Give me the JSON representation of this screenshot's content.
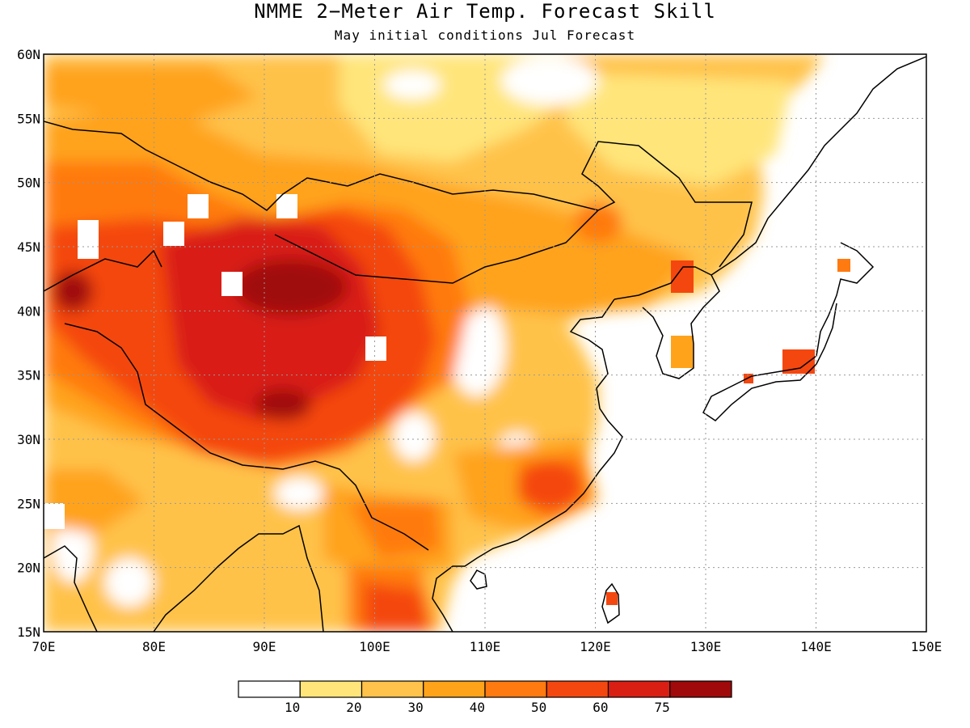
{
  "header": {
    "title": "NMME 2−Meter Air Temp. Forecast Skill",
    "subtitle": "May initial conditions  Jul Forecast"
  },
  "map": {
    "lon_range": [
      70,
      150
    ],
    "lat_range": [
      15,
      60
    ],
    "lon_ticks": [
      "70E",
      "80E",
      "90E",
      "100E",
      "110E",
      "120E",
      "130E",
      "140E",
      "150E"
    ],
    "lat_ticks": [
      "15N",
      "20N",
      "25N",
      "30N",
      "35N",
      "40N",
      "45N",
      "50N",
      "55N",
      "60N"
    ],
    "grid": true
  },
  "colorbar": {
    "labels": [
      "10",
      "20",
      "30",
      "40",
      "50",
      "60",
      "75"
    ],
    "colors": [
      "#ffffff",
      "#ffe57a",
      "#ffc24a",
      "#ffa31a",
      "#ff7a10",
      "#f4470f",
      "#d91e14",
      "#a00a0a"
    ]
  }
}
